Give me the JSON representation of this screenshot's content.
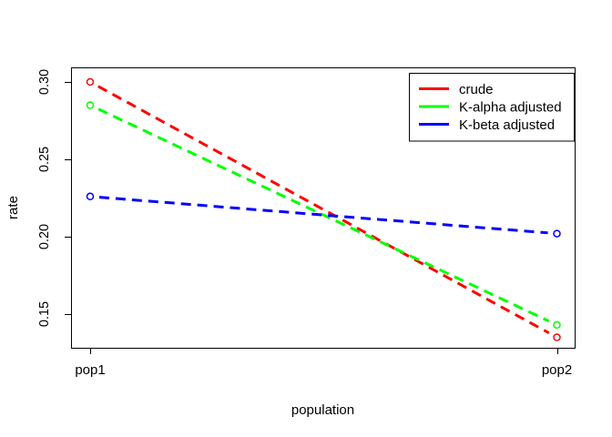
{
  "window": {
    "background": "#ffffff"
  },
  "chart_data": {
    "type": "line",
    "title": "",
    "xlabel": "population",
    "ylabel": "rate",
    "categories": [
      "pop1",
      "pop2"
    ],
    "series": [
      {
        "name": "crude",
        "color": "#ff0000",
        "values": [
          0.3,
          0.135
        ]
      },
      {
        "name": "K-alpha adjusted",
        "color": "#00ff00",
        "values": [
          0.285,
          0.143
        ]
      },
      {
        "name": "K-beta adjusted",
        "color": "#0000ff",
        "values": [
          0.226,
          0.202
        ]
      }
    ],
    "y_ticks": [
      0.3,
      0.25,
      0.2,
      0.15
    ],
    "y_tick_labels": [
      "0.30",
      "0.25",
      "0.20",
      "0.15"
    ],
    "ylim": [
      0.128,
      0.309
    ],
    "line_style": "dashed",
    "marker": "open-circle",
    "legend_position": "topright",
    "grid": false,
    "axis_color": "#000000"
  }
}
